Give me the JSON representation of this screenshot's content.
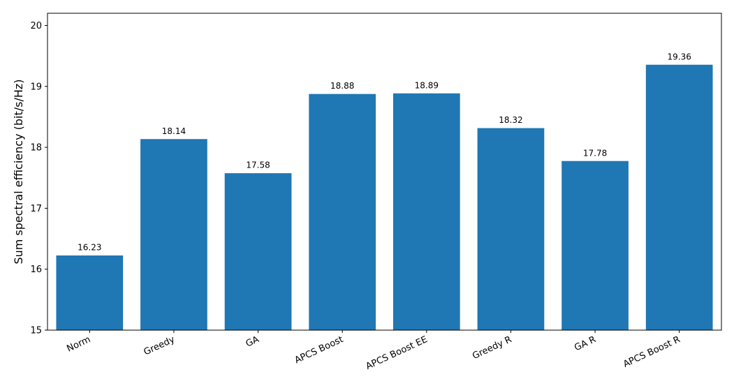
{
  "chart_data": {
    "type": "bar",
    "title": "",
    "xlabel": "",
    "ylabel": "Sum spectral efficiency (bit/s/Hz)",
    "categories": [
      "Norm",
      "Greedy",
      "GA",
      "APCS Boost",
      "APCS Boost EE",
      "Greedy R",
      "GA R",
      "APCS Boost R"
    ],
    "values": [
      16.23,
      18.14,
      17.58,
      18.88,
      18.89,
      18.32,
      17.78,
      19.36
    ],
    "value_labels": [
      "16.23",
      "18.14",
      "17.58",
      "18.88",
      "18.89",
      "18.32",
      "17.78",
      "19.36"
    ],
    "ylim": [
      15,
      20.2
    ],
    "yticks": [
      15,
      16,
      17,
      18,
      19,
      20
    ],
    "ytick_labels": [
      "15",
      "16",
      "17",
      "18",
      "19",
      "20"
    ],
    "grid": false,
    "bar_color": "#1f77b4"
  }
}
